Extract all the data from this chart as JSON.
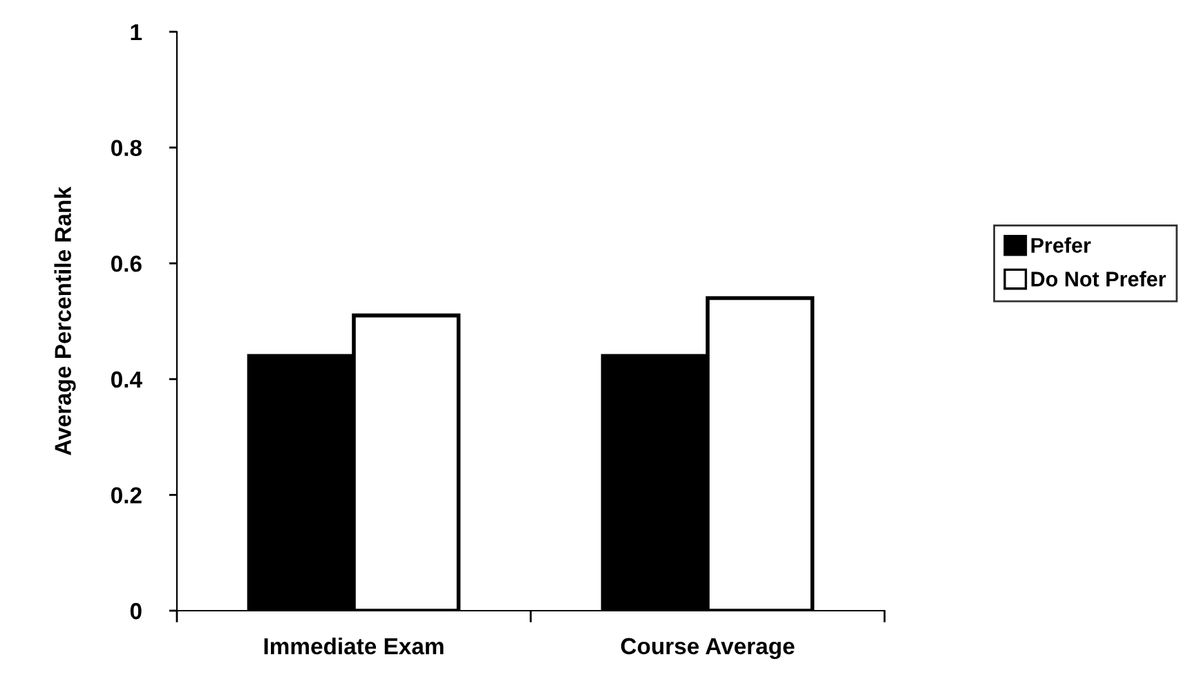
{
  "chart_data": {
    "type": "bar",
    "ylabel": "Average Percentile Rank",
    "categories": [
      "Immediate Exam",
      "Course Average"
    ],
    "series": [
      {
        "name": "Prefer",
        "color": "#000000",
        "values": [
          0.44,
          0.44
        ]
      },
      {
        "name": "Do Not Prefer",
        "color": "#ffffff",
        "values": [
          0.51,
          0.54
        ]
      }
    ],
    "ylim": [
      0,
      1
    ],
    "yticks": [
      0,
      0.2,
      0.4,
      0.6,
      0.8,
      1
    ],
    "grid": false,
    "legend": "right"
  }
}
